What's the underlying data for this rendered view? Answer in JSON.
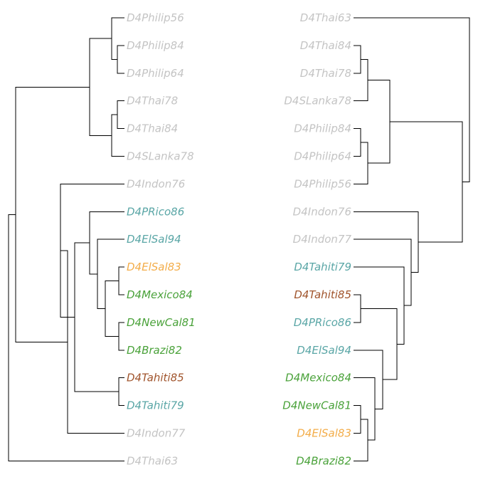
{
  "colors": {
    "grey": "#c4c4c4",
    "teal": "#5aa6a6",
    "orange": "#f3ad4a",
    "green": "#4aa23a",
    "brown": "#a0542c"
  },
  "left_tree": {
    "leaves": [
      {
        "label": "D4Philip56",
        "color": "grey"
      },
      {
        "label": "D4Philip84",
        "color": "grey"
      },
      {
        "label": "D4Philip64",
        "color": "grey"
      },
      {
        "label": "D4Thai78",
        "color": "grey"
      },
      {
        "label": "D4Thai84",
        "color": "grey"
      },
      {
        "label": "D4SLanka78",
        "color": "grey"
      },
      {
        "label": "D4Indon76",
        "color": "grey"
      },
      {
        "label": "D4PRico86",
        "color": "teal"
      },
      {
        "label": "D4ElSal94",
        "color": "teal"
      },
      {
        "label": "D4ElSal83",
        "color": "orange"
      },
      {
        "label": "D4Mexico84",
        "color": "green"
      },
      {
        "label": "D4NewCal81",
        "color": "green"
      },
      {
        "label": "D4Brazi82",
        "color": "green"
      },
      {
        "label": "D4Tahiti85",
        "color": "brown"
      },
      {
        "label": "D4Tahiti79",
        "color": "teal"
      },
      {
        "label": "D4Indon77",
        "color": "grey"
      },
      {
        "label": "D4Thai63",
        "color": "grey"
      }
    ]
  },
  "right_tree": {
    "leaves": [
      {
        "label": "D4Thai63",
        "color": "grey"
      },
      {
        "label": "D4Thai84",
        "color": "grey"
      },
      {
        "label": "D4Thai78",
        "color": "grey"
      },
      {
        "label": "D4SLanka78",
        "color": "grey"
      },
      {
        "label": "D4Philip84",
        "color": "grey"
      },
      {
        "label": "D4Philip64",
        "color": "grey"
      },
      {
        "label": "D4Philip56",
        "color": "grey"
      },
      {
        "label": "D4Indon76",
        "color": "grey"
      },
      {
        "label": "D4Indon77",
        "color": "grey"
      },
      {
        "label": "D4Tahiti79",
        "color": "teal"
      },
      {
        "label": "D4Tahiti85",
        "color": "brown"
      },
      {
        "label": "D4PRico86",
        "color": "teal"
      },
      {
        "label": "D4ElSal94",
        "color": "teal"
      },
      {
        "label": "D4Mexico84",
        "color": "green"
      },
      {
        "label": "D4NewCal81",
        "color": "green"
      },
      {
        "label": "D4ElSal83",
        "color": "orange"
      },
      {
        "label": "D4Brazi82",
        "color": "green"
      }
    ]
  }
}
